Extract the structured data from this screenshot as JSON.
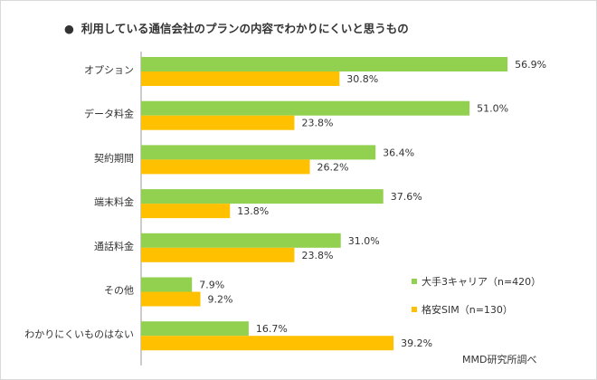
{
  "title": "利用している通信会社のプランの内容でわかりにくいと思うもの",
  "bullet": "●",
  "source": "MMD研究所調べ",
  "colors": {
    "series1": "#92d050",
    "series2": "#ffc000",
    "axis": "#999999"
  },
  "chart_data": {
    "type": "bar",
    "orientation": "horizontal",
    "categories": [
      "オプション",
      "データ料金",
      "契約期間",
      "端末料金",
      "通話料金",
      "その他",
      "わかりにくいものはない"
    ],
    "series": [
      {
        "name": "大手3キャリア（n=420）",
        "values": [
          56.9,
          51.0,
          36.4,
          37.6,
          31.0,
          7.9,
          16.7
        ],
        "labels": [
          "56.9%",
          "51.0%",
          "36.4%",
          "37.6%",
          "31.0%",
          "7.9%",
          "16.7%"
        ]
      },
      {
        "name": "格安SIM（n=130）",
        "values": [
          30.8,
          23.8,
          26.2,
          13.8,
          23.8,
          9.2,
          39.2
        ],
        "labels": [
          "30.8%",
          "23.8%",
          "26.2%",
          "13.8%",
          "23.8%",
          "9.2%",
          "39.2%"
        ]
      }
    ],
    "xlim": [
      0,
      60
    ],
    "grid": false,
    "legend_position": "bottom-right"
  }
}
